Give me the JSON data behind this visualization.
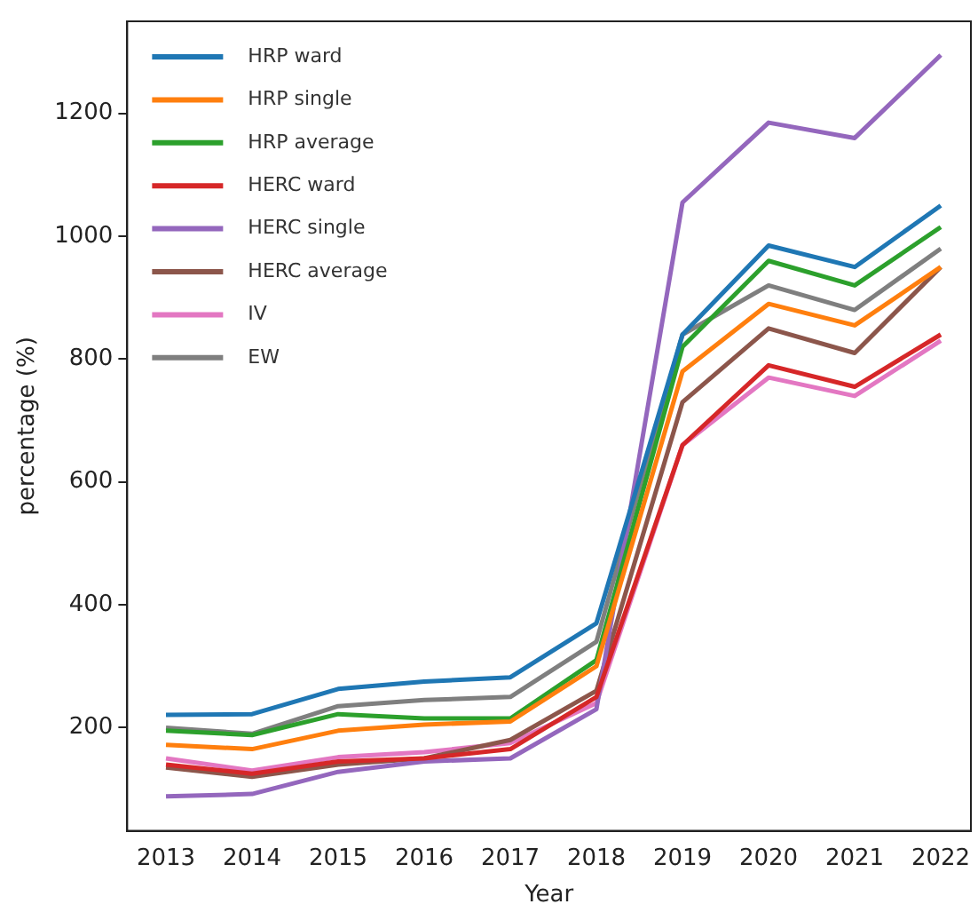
{
  "chart_data": {
    "type": "line",
    "xlabel": "Year",
    "ylabel": "percentage (%)",
    "x": [
      2013,
      2014,
      2015,
      2016,
      2017,
      2018,
      2019,
      2020,
      2021,
      2022
    ],
    "xlim": [
      2012.55,
      2022.35
    ],
    "xticks": [
      2013,
      2014,
      2015,
      2016,
      2017,
      2018,
      2019,
      2020,
      2021,
      2022
    ],
    "ylim": [
      32,
      1350
    ],
    "yticks": [
      200,
      400,
      600,
      800,
      1000,
      1200
    ],
    "grid": false,
    "legend": "top left",
    "marker": "none",
    "line_style": "solid",
    "series": [
      {
        "name": "HRP ward",
        "color": "#1f77b4",
        "values": [
          221,
          222,
          263,
          275,
          282,
          370,
          840,
          985,
          950,
          1050
        ]
      },
      {
        "name": "HRP single",
        "color": "#ff7f0e",
        "values": [
          172,
          165,
          195,
          205,
          210,
          300,
          780,
          890,
          855,
          950
        ]
      },
      {
        "name": "HRP average",
        "color": "#2ca02c",
        "values": [
          195,
          188,
          222,
          215,
          215,
          310,
          820,
          960,
          920,
          1015
        ]
      },
      {
        "name": "HERC ward",
        "color": "#d62728",
        "values": [
          140,
          125,
          145,
          150,
          165,
          250,
          660,
          790,
          755,
          840
        ]
      },
      {
        "name": "HERC single",
        "color": "#9467bd",
        "values": [
          88,
          92,
          128,
          145,
          150,
          230,
          1055,
          1185,
          1160,
          1295
        ]
      },
      {
        "name": "HERC average",
        "color": "#8c564b",
        "values": [
          135,
          120,
          140,
          150,
          180,
          260,
          730,
          850,
          810,
          950
        ]
      },
      {
        "name": "IV",
        "color": "#e377c2",
        "values": [
          150,
          130,
          152,
          160,
          175,
          240,
          660,
          770,
          740,
          830
        ]
      },
      {
        "name": "EW",
        "color": "#7f7f7f",
        "values": [
          200,
          190,
          235,
          245,
          250,
          340,
          840,
          920,
          880,
          980
        ]
      }
    ]
  }
}
